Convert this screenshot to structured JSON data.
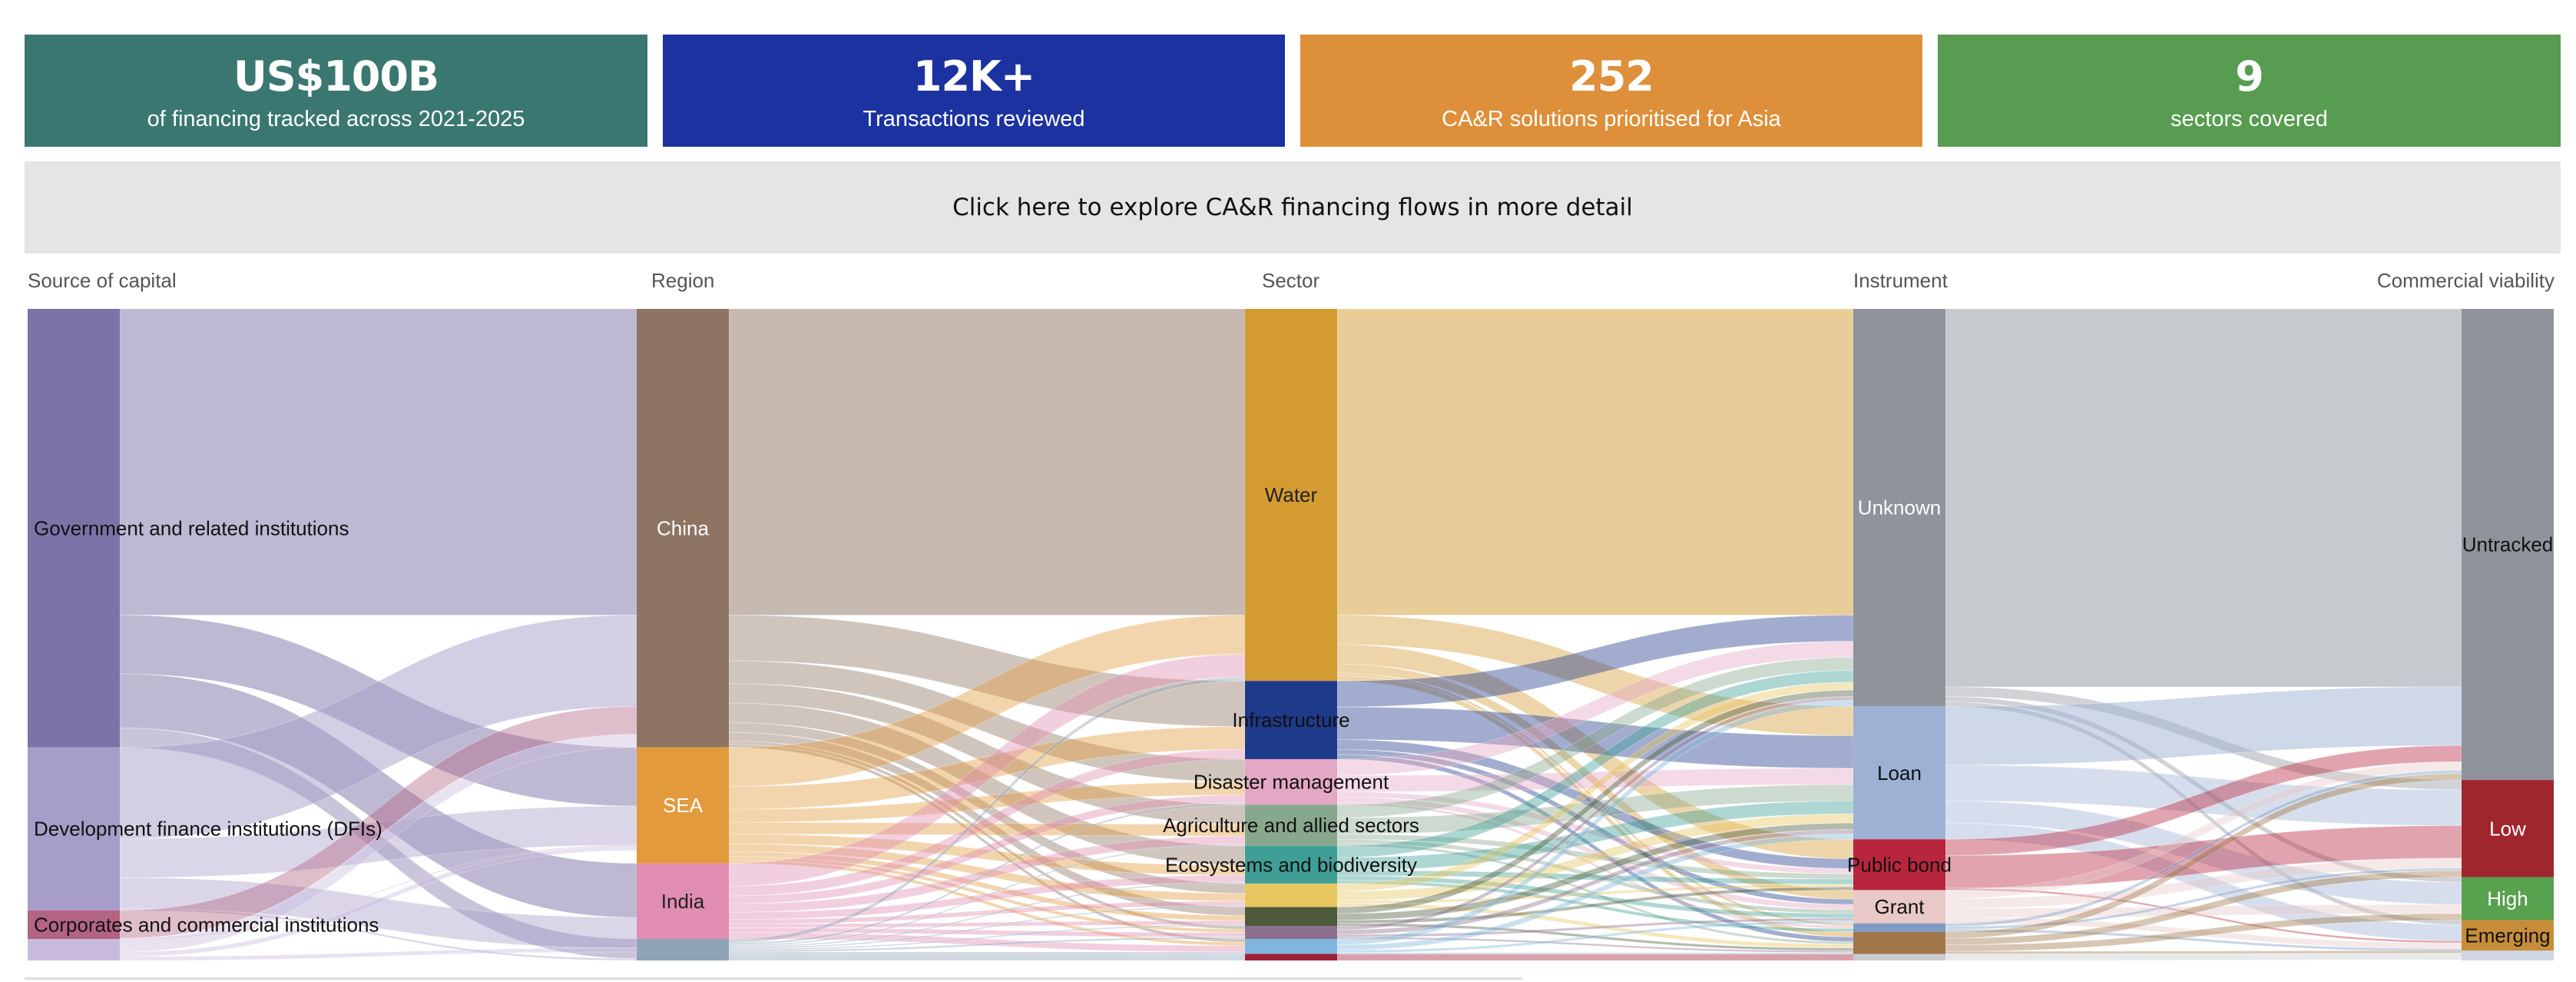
{
  "stats": [
    {
      "value": "US$100B",
      "label": "of financing tracked across 2021-2025",
      "color": "#3a7770"
    },
    {
      "value": "12K+",
      "label": "Transactions reviewed",
      "color": "#1c32a0"
    },
    {
      "value": "252",
      "label": "CA&R solutions prioritised for Asia",
      "color": "#de8f39"
    },
    {
      "value": "9",
      "label": "sectors covered",
      "color": "#579c50"
    }
  ],
  "explore_label": "Click here to explore CA&R financing flows in more detail",
  "chart_data": {
    "type": "sankey",
    "columns": [
      "Source of capital",
      "Region",
      "Sector",
      "Instrument",
      "Commercial viability"
    ],
    "nodes": [
      {
        "stage": 0,
        "label": "Government and related institutions",
        "value": 67.3,
        "color": "#7d72a8"
      },
      {
        "stage": 0,
        "label": "Development finance institutions (DFIs)",
        "value": 25.0,
        "color": "#a69dc8"
      },
      {
        "stage": 0,
        "label": "Corporates and commercial institutions",
        "value": 4.4,
        "color": "#b36482"
      },
      {
        "stage": 0,
        "label": "",
        "value": 3.3,
        "color": "#c7bbdd"
      },
      {
        "stage": 1,
        "label": "China",
        "value": 67.3,
        "color": "#8e7462"
      },
      {
        "stage": 1,
        "label": "SEA",
        "value": 17.8,
        "color": "#e39a3c"
      },
      {
        "stage": 1,
        "label": "India",
        "value": 11.6,
        "color": "#e18cb1"
      },
      {
        "stage": 1,
        "label": "",
        "value": 3.3,
        "color": "#8fa3b7"
      },
      {
        "stage": 2,
        "label": "Water",
        "value": 57.1,
        "color": "#d49b31"
      },
      {
        "stage": 2,
        "label": "Infrastructure",
        "value": 12.0,
        "color": "#1e3a8a"
      },
      {
        "stage": 2,
        "label": "Disaster management",
        "value": 7.0,
        "color": "#e3a8c3"
      },
      {
        "stage": 2,
        "label": "Agriculture and allied sectors",
        "value": 6.3,
        "color": "#87a88c"
      },
      {
        "stage": 2,
        "label": "Ecosystems and biodiversity",
        "value": 5.8,
        "color": "#3f9f97"
      },
      {
        "stage": 2,
        "label": "",
        "value": 3.6,
        "color": "#e8c660"
      },
      {
        "stage": 2,
        "label": "",
        "value": 2.9,
        "color": "#4d5b3b"
      },
      {
        "stage": 2,
        "label": "",
        "value": 2.0,
        "color": "#8d6f90"
      },
      {
        "stage": 2,
        "label": "",
        "value": 2.3,
        "color": "#7fb6dc"
      },
      {
        "stage": 2,
        "label": "",
        "value": 1.0,
        "color": "#a01f38"
      },
      {
        "stage": 3,
        "label": "Unknown",
        "value": 61.0,
        "color": "#8e939c"
      },
      {
        "stage": 3,
        "label": "Loan",
        "value": 20.4,
        "color": "#9db1d4"
      },
      {
        "stage": 3,
        "label": "Public bond",
        "value": 7.8,
        "color": "#b8263d"
      },
      {
        "stage": 3,
        "label": "Grant",
        "value": 5.1,
        "color": "#e8c9c7"
      },
      {
        "stage": 3,
        "label": "",
        "value": 1.3,
        "color": "#7f9bc4"
      },
      {
        "stage": 3,
        "label": "",
        "value": 3.4,
        "color": "#a0764a"
      },
      {
        "stage": 3,
        "label": "",
        "value": 1.0,
        "color": "#c9cbcf"
      },
      {
        "stage": 4,
        "label": "Untracked",
        "value": 72.3,
        "color": "#8e939c"
      },
      {
        "stage": 4,
        "label": "Low",
        "value": 14.9,
        "color": "#a0262e"
      },
      {
        "stage": 4,
        "label": "High",
        "value": 6.6,
        "color": "#57a14f"
      },
      {
        "stage": 4,
        "label": "Emerging",
        "value": 4.7,
        "color": "#c88d3a"
      },
      {
        "stage": 4,
        "label": "",
        "value": 1.5,
        "color": "#cfd6e2"
      }
    ],
    "links": [
      {
        "source": 0,
        "target": 4,
        "value": 47.0
      },
      {
        "source": 0,
        "target": 5,
        "value": 9.0
      },
      {
        "source": 0,
        "target": 6,
        "value": 8.3
      },
      {
        "source": 0,
        "target": 7,
        "value": 3.0
      },
      {
        "source": 1,
        "target": 4,
        "value": 14.0
      },
      {
        "source": 1,
        "target": 5,
        "value": 6.0
      },
      {
        "source": 1,
        "target": 6,
        "value": 4.7
      },
      {
        "source": 1,
        "target": 7,
        "value": 0.3
      },
      {
        "source": 2,
        "target": 4,
        "value": 4.3
      },
      {
        "source": 2,
        "target": 5,
        "value": 0.1
      },
      {
        "source": 3,
        "target": 4,
        "value": 2.0
      },
      {
        "source": 3,
        "target": 5,
        "value": 0.7
      },
      {
        "source": 3,
        "target": 6,
        "value": 0.6
      },
      {
        "source": 4,
        "target": 8,
        "value": 47.0
      },
      {
        "source": 4,
        "target": 9,
        "value": 7.0
      },
      {
        "source": 4,
        "target": 10,
        "value": 3.5
      },
      {
        "source": 4,
        "target": 11,
        "value": 3.0
      },
      {
        "source": 4,
        "target": 12,
        "value": 3.0
      },
      {
        "source": 4,
        "target": 13,
        "value": 1.5
      },
      {
        "source": 4,
        "target": 14,
        "value": 1.3
      },
      {
        "source": 4,
        "target": 15,
        "value": 0.5
      },
      {
        "source": 4,
        "target": 16,
        "value": 0.5
      },
      {
        "source": 5,
        "target": 8,
        "value": 6.0
      },
      {
        "source": 5,
        "target": 9,
        "value": 3.5
      },
      {
        "source": 5,
        "target": 10,
        "value": 2.0
      },
      {
        "source": 5,
        "target": 11,
        "value": 1.8
      },
      {
        "source": 5,
        "target": 12,
        "value": 1.5
      },
      {
        "source": 5,
        "target": 13,
        "value": 1.2
      },
      {
        "source": 5,
        "target": 14,
        "value": 0.8
      },
      {
        "source": 5,
        "target": 15,
        "value": 0.5
      },
      {
        "source": 5,
        "target": 16,
        "value": 0.5
      },
      {
        "source": 6,
        "target": 8,
        "value": 3.5
      },
      {
        "source": 6,
        "target": 9,
        "value": 1.5
      },
      {
        "source": 6,
        "target": 10,
        "value": 1.2
      },
      {
        "source": 6,
        "target": 11,
        "value": 1.3
      },
      {
        "source": 6,
        "target": 12,
        "value": 1.1
      },
      {
        "source": 6,
        "target": 13,
        "value": 0.7
      },
      {
        "source": 6,
        "target": 14,
        "value": 0.6
      },
      {
        "source": 6,
        "target": 15,
        "value": 0.7
      },
      {
        "source": 6,
        "target": 16,
        "value": 1.0
      },
      {
        "source": 7,
        "target": 8,
        "value": 0.6
      },
      {
        "source": 7,
        "target": 10,
        "value": 0.3
      },
      {
        "source": 7,
        "target": 11,
        "value": 0.2
      },
      {
        "source": 7,
        "target": 12,
        "value": 0.2
      },
      {
        "source": 7,
        "target": 13,
        "value": 0.2
      },
      {
        "source": 7,
        "target": 14,
        "value": 0.2
      },
      {
        "source": 7,
        "target": 15,
        "value": 0.3
      },
      {
        "source": 7,
        "target": 16,
        "value": 0.3
      },
      {
        "source": 7,
        "target": 17,
        "value": 1.0
      },
      {
        "source": 8,
        "target": 18,
        "value": 47.0
      },
      {
        "source": 8,
        "target": 19,
        "value": 4.5
      },
      {
        "source": 8,
        "target": 20,
        "value": 3.0
      },
      {
        "source": 8,
        "target": 21,
        "value": 1.4
      },
      {
        "source": 8,
        "target": 22,
        "value": 0.4
      },
      {
        "source": 8,
        "target": 23,
        "value": 0.8
      },
      {
        "source": 9,
        "target": 18,
        "value": 4.0
      },
      {
        "source": 9,
        "target": 19,
        "value": 5.0
      },
      {
        "source": 9,
        "target": 20,
        "value": 1.5
      },
      {
        "source": 9,
        "target": 21,
        "value": 0.8
      },
      {
        "source": 9,
        "target": 23,
        "value": 0.7
      },
      {
        "source": 10,
        "target": 18,
        "value": 2.5
      },
      {
        "source": 10,
        "target": 19,
        "value": 2.5
      },
      {
        "source": 10,
        "target": 20,
        "value": 0.8
      },
      {
        "source": 10,
        "target": 21,
        "value": 0.8
      },
      {
        "source": 10,
        "target": 22,
        "value": 0.4
      },
      {
        "source": 11,
        "target": 18,
        "value": 2.0
      },
      {
        "source": 11,
        "target": 19,
        "value": 2.5
      },
      {
        "source": 11,
        "target": 20,
        "value": 0.8
      },
      {
        "source": 11,
        "target": 21,
        "value": 0.6
      },
      {
        "source": 11,
        "target": 23,
        "value": 0.4
      },
      {
        "source": 12,
        "target": 18,
        "value": 1.8
      },
      {
        "source": 12,
        "target": 19,
        "value": 2.0
      },
      {
        "source": 12,
        "target": 20,
        "value": 0.8
      },
      {
        "source": 12,
        "target": 21,
        "value": 0.7
      },
      {
        "source": 12,
        "target": 22,
        "value": 0.5
      },
      {
        "source": 13,
        "target": 18,
        "value": 1.2
      },
      {
        "source": 13,
        "target": 19,
        "value": 1.4
      },
      {
        "source": 13,
        "target": 20,
        "value": 0.4
      },
      {
        "source": 13,
        "target": 23,
        "value": 0.6
      },
      {
        "source": 14,
        "target": 18,
        "value": 1.0
      },
      {
        "source": 14,
        "target": 19,
        "value": 1.0
      },
      {
        "source": 14,
        "target": 20,
        "value": 0.5
      },
      {
        "source": 14,
        "target": 23,
        "value": 0.4
      },
      {
        "source": 15,
        "target": 18,
        "value": 0.6
      },
      {
        "source": 15,
        "target": 19,
        "value": 0.7
      },
      {
        "source": 15,
        "target": 21,
        "value": 0.4
      },
      {
        "source": 15,
        "target": 23,
        "value": 0.3
      },
      {
        "source": 16,
        "target": 18,
        "value": 0.9
      },
      {
        "source": 16,
        "target": 19,
        "value": 0.8
      },
      {
        "source": 16,
        "target": 21,
        "value": 0.4
      },
      {
        "source": 16,
        "target": 23,
        "value": 0.2
      },
      {
        "source": 17,
        "target": 24,
        "value": 1.0
      },
      {
        "source": 18,
        "target": 25,
        "value": 58.0
      },
      {
        "source": 18,
        "target": 26,
        "value": 1.5
      },
      {
        "source": 18,
        "target": 27,
        "value": 0.8
      },
      {
        "source": 18,
        "target": 28,
        "value": 0.7
      },
      {
        "source": 19,
        "target": 25,
        "value": 9.0
      },
      {
        "source": 19,
        "target": 26,
        "value": 5.5
      },
      {
        "source": 19,
        "target": 27,
        "value": 3.4
      },
      {
        "source": 19,
        "target": 28,
        "value": 2.5
      },
      {
        "source": 20,
        "target": 25,
        "value": 2.5
      },
      {
        "source": 20,
        "target": 26,
        "value": 5.0
      },
      {
        "source": 20,
        "target": 28,
        "value": 0.3
      },
      {
        "source": 21,
        "target": 25,
        "value": 1.3
      },
      {
        "source": 21,
        "target": 26,
        "value": 1.5
      },
      {
        "source": 21,
        "target": 27,
        "value": 1.4
      },
      {
        "source": 21,
        "target": 28,
        "value": 0.9
      },
      {
        "source": 22,
        "target": 25,
        "value": 0.5
      },
      {
        "source": 22,
        "target": 26,
        "value": 0.4
      },
      {
        "source": 22,
        "target": 28,
        "value": 0.4
      },
      {
        "source": 23,
        "target": 25,
        "value": 1.0
      },
      {
        "source": 23,
        "target": 26,
        "value": 1.0
      },
      {
        "source": 23,
        "target": 27,
        "value": 1.0
      },
      {
        "source": 23,
        "target": 29,
        "value": 0.4
      },
      {
        "source": 24,
        "target": 29,
        "value": 1.0
      }
    ]
  }
}
